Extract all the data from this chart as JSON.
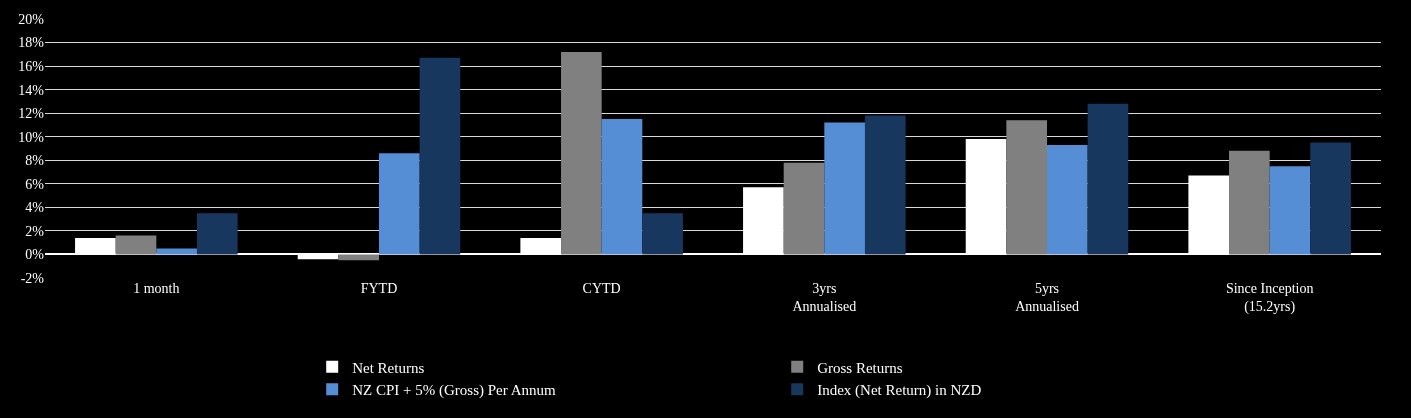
{
  "chart_data": {
    "type": "bar",
    "categories": [
      "1 month",
      "FYTD",
      "CYTD",
      "3yrs\nAnnualised",
      "5yrs\nAnnualised",
      "Since Inception\n(15.2yrs)"
    ],
    "series": [
      {
        "name": "Net Returns",
        "color": "#ffffff",
        "values": [
          1.4,
          -0.4,
          1.4,
          5.7,
          9.8,
          6.7
        ]
      },
      {
        "name": "Gross Returns",
        "color": "#808080",
        "values": [
          1.6,
          -0.5,
          17.2,
          7.8,
          11.4,
          8.8
        ]
      },
      {
        "name": "NZ CPI + 5% (Gross) Per Annum",
        "color": "#558ed5",
        "values": [
          0.5,
          8.6,
          11.5,
          11.2,
          9.3,
          7.5
        ]
      },
      {
        "name": "Index (Net Return) in NZD",
        "color": "#17375e",
        "values": [
          3.5,
          16.7,
          3.5,
          11.8,
          12.8,
          9.5
        ]
      }
    ],
    "ylim": [
      -2,
      20
    ],
    "yticks": [
      {
        "value": -2,
        "label": "-2%"
      },
      {
        "value": 0,
        "label": "0%"
      },
      {
        "value": 2,
        "label": "2%"
      },
      {
        "value": 4,
        "label": "4%"
      },
      {
        "value": 6,
        "label": "6%"
      },
      {
        "value": 8,
        "label": "8%"
      },
      {
        "value": 10,
        "label": "10%"
      },
      {
        "value": 12,
        "label": "12%"
      },
      {
        "value": 14,
        "label": "14%"
      },
      {
        "value": 16,
        "label": "16%"
      },
      {
        "value": 18,
        "label": "18%"
      },
      {
        "value": 20,
        "label": "20%"
      }
    ],
    "grid": "y",
    "legend": "bottom"
  }
}
